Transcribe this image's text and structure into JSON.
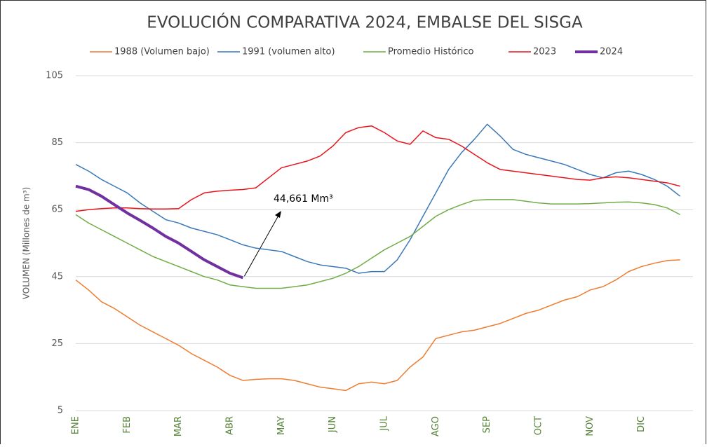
{
  "chart_data": {
    "type": "line",
    "title": "EVOLUCIÓN COMPARATIVA 2024, EMBALSE DEL SISGA",
    "y_label": "VOLUMEN (Millones de m³)",
    "annotation": "44,661 Mm³",
    "categories": [
      "ENE",
      null,
      null,
      null,
      "FEB",
      null,
      null,
      null,
      "MAR",
      null,
      null,
      null,
      "ABR",
      null,
      null,
      null,
      "MAY",
      null,
      null,
      null,
      "JUN",
      null,
      null,
      null,
      "JUL",
      null,
      null,
      null,
      "AGO",
      null,
      null,
      null,
      "SEP",
      null,
      null,
      null,
      "OCT",
      null,
      null,
      null,
      "NOV",
      null,
      null,
      null,
      "DIC",
      null,
      null,
      null
    ],
    "ylim": [
      5,
      105
    ],
    "yticks": [
      5,
      25,
      45,
      65,
      85,
      105
    ],
    "grid": true,
    "legend": "top",
    "series": [
      {
        "name": "1988 (Volumen bajo)",
        "color": "#ED7D31",
        "width": 1.5,
        "values": [
          44,
          41,
          37.5,
          35.5,
          33,
          30.5,
          28.5,
          26.5,
          24.5,
          22,
          20,
          18,
          15.5,
          14,
          14.3,
          14.5,
          14.5,
          14,
          13,
          12,
          11.5,
          11,
          13,
          13.5,
          13,
          14,
          18,
          21,
          26.5,
          27.5,
          28.5,
          29,
          30,
          31,
          32.5,
          34,
          35,
          36.5,
          38,
          39,
          41,
          42,
          44,
          46.5,
          48,
          49,
          49.8,
          50
        ]
      },
      {
        "name": "1991 (volumen alto)",
        "color": "#3A78B8",
        "width": 1.5,
        "values": [
          78.5,
          76.5,
          74,
          72,
          70,
          67,
          64.5,
          62,
          61,
          59.5,
          58.5,
          57.5,
          56,
          54.5,
          53.5,
          53,
          52.5,
          51,
          49.5,
          48.5,
          48,
          47.5,
          46,
          46.5,
          46.5,
          50,
          56,
          63,
          70,
          77,
          82,
          86,
          90.5,
          87,
          83,
          81.5,
          80.5,
          79.5,
          78.5,
          77,
          75.5,
          74.5,
          76,
          76.5,
          75.5,
          74,
          72,
          69
        ]
      },
      {
        "name": "Promedio Histórico",
        "color": "#70AD47",
        "width": 1.5,
        "values": [
          63.5,
          61,
          59,
          57,
          55,
          53,
          51,
          49.5,
          48,
          46.5,
          45,
          44,
          42.5,
          42,
          41.5,
          41.5,
          41.5,
          42,
          42.5,
          43.5,
          44.5,
          46,
          48,
          50.5,
          53,
          55,
          57,
          60,
          63,
          65,
          66.5,
          67.8,
          68,
          68,
          68,
          67.5,
          67,
          66.7,
          66.7,
          66.7,
          66.8,
          67,
          67.2,
          67.3,
          67,
          66.5,
          65.5,
          63.5
        ]
      },
      {
        "name": "2023",
        "color": "#E8141B",
        "width": 1.5,
        "values": [
          64.5,
          65,
          65.3,
          65.5,
          65.5,
          65.3,
          65.2,
          65.2,
          65.3,
          68,
          70,
          70.5,
          70.8,
          71,
          71.5,
          74.5,
          77.5,
          78.5,
          79.5,
          81,
          84,
          88,
          89.5,
          90,
          88,
          85.5,
          84.5,
          88.5,
          86.5,
          86,
          84,
          81.5,
          79,
          77,
          76.5,
          76,
          75.5,
          75,
          74.5,
          74,
          73.8,
          74.5,
          74.8,
          74.5,
          74,
          73.5,
          73,
          72
        ]
      },
      {
        "name": "2024",
        "color": "#7030A0",
        "width": 4,
        "values": [
          72,
          71,
          69,
          66.5,
          64,
          61.8,
          59.5,
          57,
          55,
          52.5,
          50,
          48,
          46,
          44.661,
          null,
          null,
          null,
          null,
          null,
          null,
          null,
          null,
          null,
          null,
          null,
          null,
          null,
          null,
          null,
          null,
          null,
          null,
          null,
          null,
          null,
          null,
          null,
          null,
          null,
          null,
          null,
          null,
          null,
          null,
          null,
          null,
          null,
          null
        ]
      }
    ]
  }
}
